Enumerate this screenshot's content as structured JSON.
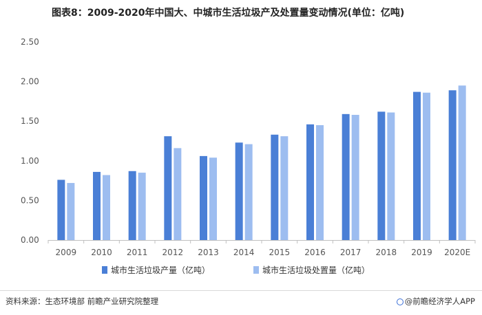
{
  "title": "图表8：2009-2020年中国大、中城市生活垃圾产及处置量变动情况(单位：亿吨)",
  "source": "资料来源：生态环境部 前瞻产业研究院整理",
  "brand": "@前瞻经济学人APP",
  "colors": {
    "series1": "#4a7fd6",
    "series2": "#9dbdf0",
    "axis": "#bfbfbf"
  },
  "chart_data": {
    "type": "bar",
    "categories": [
      "2009",
      "2010",
      "2011",
      "2012",
      "2013",
      "2014",
      "2015",
      "2016",
      "2017",
      "2018",
      "2019",
      "2020E"
    ],
    "series": [
      {
        "name": "城市生活垃圾产量（亿吨）",
        "values": [
          0.76,
          0.86,
          0.87,
          1.31,
          1.06,
          1.23,
          1.33,
          1.46,
          1.59,
          1.62,
          1.87,
          1.89
        ]
      },
      {
        "name": "城市生活垃圾处置量（亿吨）",
        "values": [
          0.72,
          0.82,
          0.85,
          1.16,
          1.04,
          1.21,
          1.31,
          1.45,
          1.58,
          1.61,
          1.86,
          1.95
        ]
      }
    ],
    "yticks": [
      "0.00",
      "0.50",
      "1.00",
      "1.50",
      "2.00",
      "2.50"
    ],
    "ylim": [
      0,
      2.5
    ],
    "grid": false,
    "legend_position": "bottom"
  }
}
